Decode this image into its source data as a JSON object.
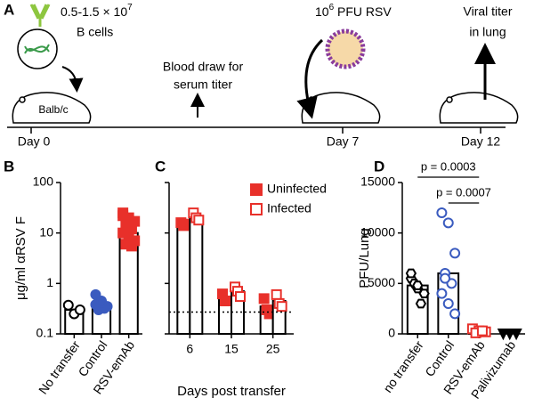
{
  "diagram": {
    "panel": "A",
    "cells_text": "0.5-1.5 × 10",
    "cells_sup": "7",
    "cells_unit": "B cells",
    "mouse_label": "Balb/c",
    "blood_1": "Blood draw for",
    "blood_2": "serum titer",
    "virus_base": "10",
    "virus_sup": "6",
    "virus_text": " PFU RSV",
    "titer_1": "Viral titer",
    "titer_2": "in lung",
    "day0": "Day 0",
    "day7": "Day 7",
    "day12": "Day 12"
  },
  "chart_data": [
    {
      "type": "bar",
      "panel": "B",
      "y_label": "μg/ml αRSV F",
      "log_scale": true,
      "categories": [
        "No transfer",
        "Control",
        "RSV-emAb"
      ],
      "values": [
        0.3,
        0.4,
        10
      ],
      "points": [
        [
          0.37,
          0.25,
          0.3
        ],
        [
          0.6,
          0.45,
          0.35,
          0.3,
          0.32,
          0.38,
          0.42
        ],
        [
          25,
          20,
          17,
          14,
          12,
          10,
          8,
          7,
          6,
          5.5,
          22
        ]
      ],
      "colors": [
        "#000000",
        "#3a5bbf",
        "#e8302a"
      ],
      "markers": [
        "circle",
        "circle",
        "square"
      ],
      "filled": [
        false,
        true,
        true
      ],
      "ylim": [
        0.1,
        100
      ],
      "yticks": [
        0.1,
        1,
        10,
        100
      ],
      "show_ytick_labels": true
    },
    {
      "type": "grouped_bar",
      "panel": "C",
      "x_label": "Days post transfer",
      "log_scale": true,
      "categories": [
        "6",
        "15",
        "25"
      ],
      "reference_line": 0.27,
      "series": [
        {
          "name": "Uninfected",
          "color": "#e8302a",
          "filled": true,
          "values": [
            15,
            0.55,
            0.35
          ],
          "points": [
            [
              16,
              14,
              15
            ],
            [
              0.62,
              0.45,
              0.45
            ],
            [
              0.5,
              0.3,
              0.25
            ]
          ]
        },
        {
          "name": "Infected",
          "color": "#e8302a",
          "filled": false,
          "values": [
            20,
            0.7,
            0.45
          ],
          "points": [
            [
              25,
              20,
              18
            ],
            [
              0.85,
              0.7,
              0.55
            ],
            [
              0.6,
              0.4,
              0.35
            ]
          ]
        }
      ],
      "ylim": [
        0.1,
        100
      ],
      "yticks": [
        0.1,
        1,
        10,
        100
      ],
      "show_ytick_labels": false
    },
    {
      "type": "bar",
      "panel": "D",
      "y_label": "PFU/Lung",
      "log_scale": false,
      "categories": [
        "no transfer",
        "Control",
        "RSV-emAb",
        "Palivizumab"
      ],
      "values": [
        4800,
        6000,
        300,
        0
      ],
      "points": [
        [
          5500,
          4500,
          4000,
          5000,
          3000,
          6000,
          4800
        ],
        [
          12000,
          11000,
          8000,
          6000,
          5000,
          4000,
          3000,
          2000,
          5500
        ],
        [
          500,
          300,
          200,
          100,
          300
        ],
        [
          0,
          0,
          0
        ]
      ],
      "colors": [
        "#000000",
        "#3a5bbf",
        "#e8302a",
        "#000000"
      ],
      "markers": [
        "hexagon",
        "circle",
        "square",
        "triangle"
      ],
      "filled": [
        false,
        false,
        false,
        true
      ],
      "ylim": [
        0,
        15000
      ],
      "yticks": [
        0,
        5000,
        10000,
        15000
      ],
      "show_ytick_labels": true,
      "annotations": [
        "p = 0.0003",
        "p = 0.0007"
      ]
    }
  ]
}
